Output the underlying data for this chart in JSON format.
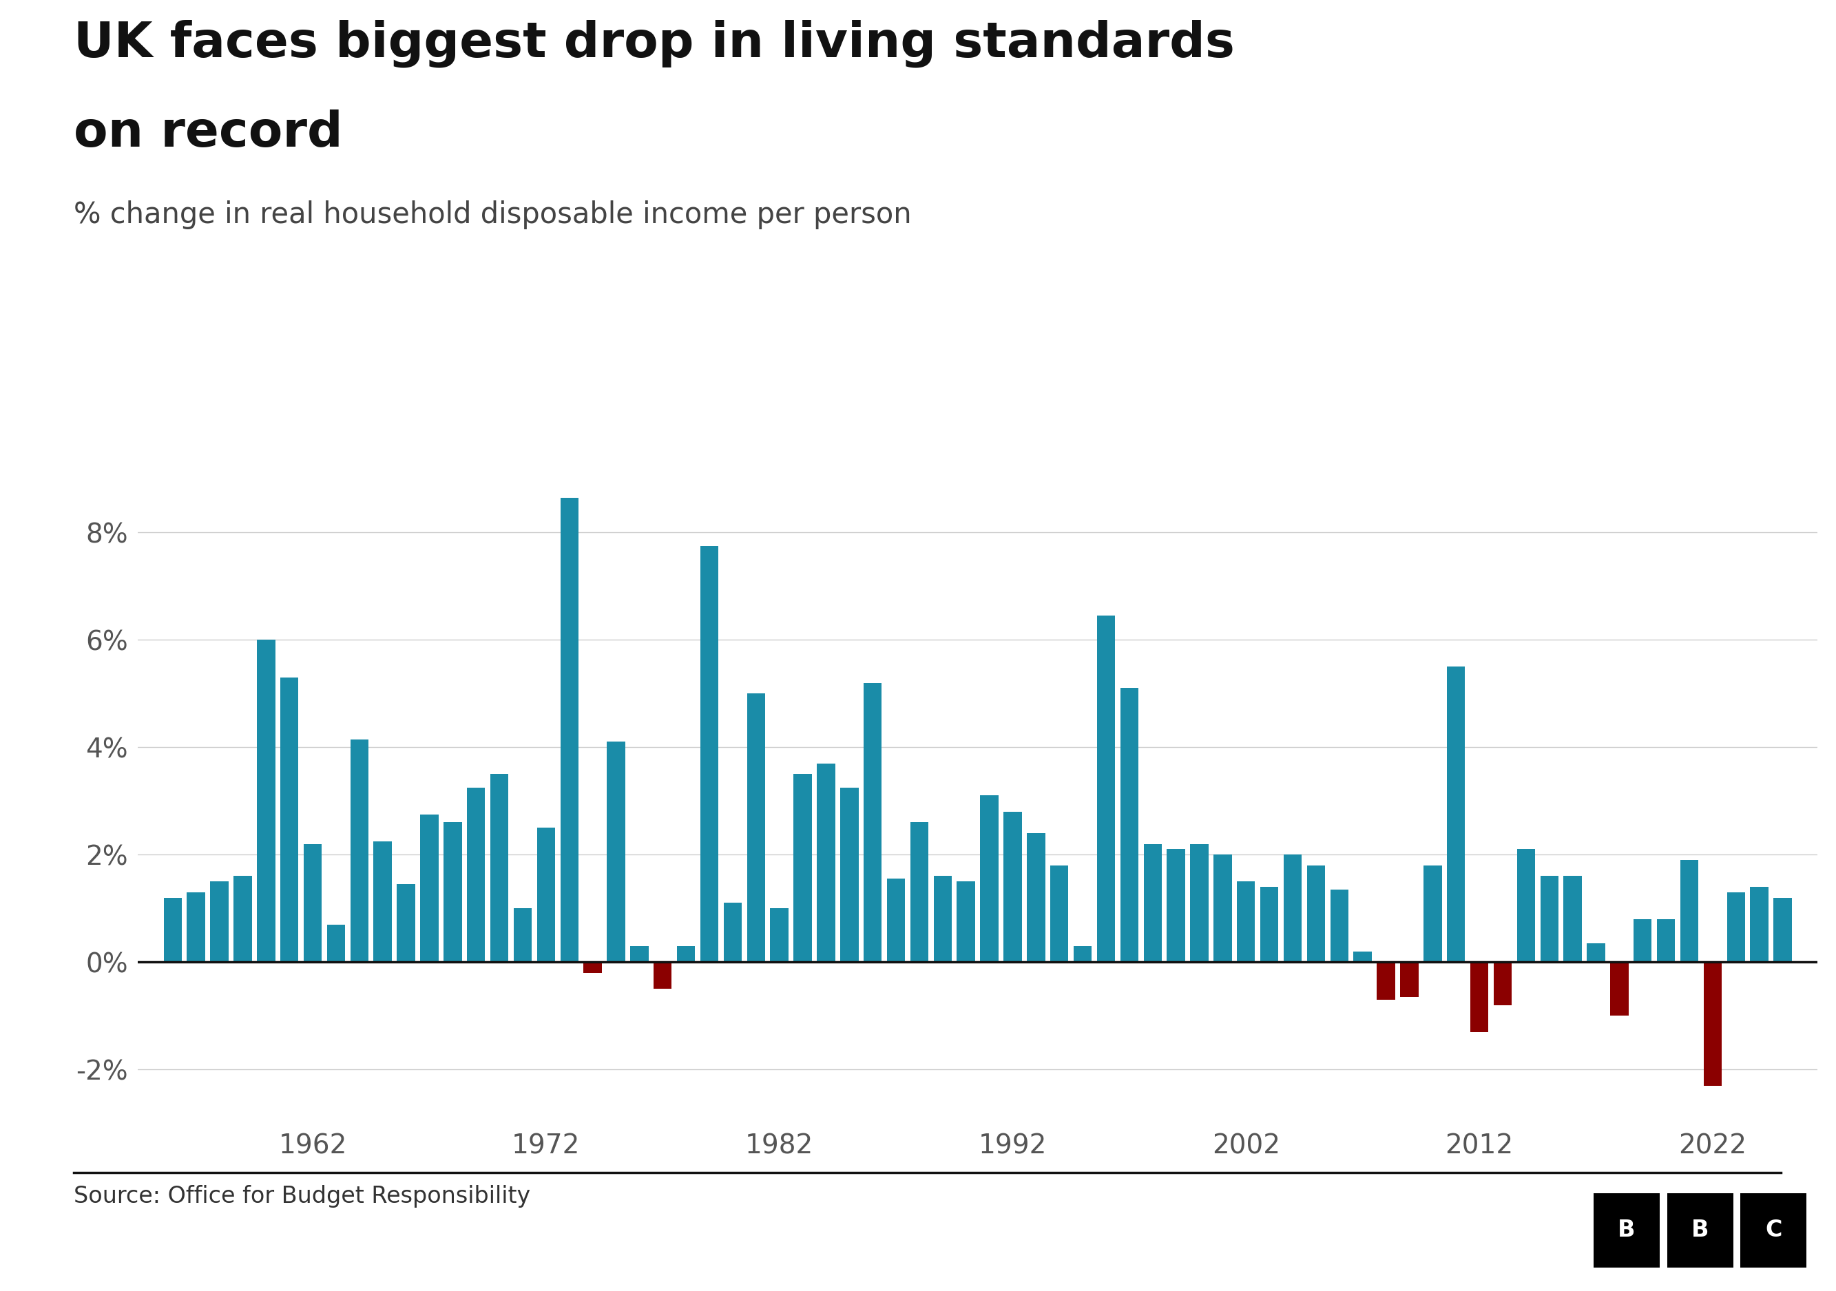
{
  "title_line1": "UK faces biggest drop in living standards",
  "title_line2": "on record",
  "subtitle": "% change in real household disposable income per person",
  "source": "Source: Office for Budget Responsibility",
  "years": [
    1956,
    1957,
    1958,
    1959,
    1960,
    1961,
    1962,
    1963,
    1964,
    1965,
    1966,
    1967,
    1968,
    1969,
    1970,
    1971,
    1972,
    1973,
    1974,
    1975,
    1976,
    1977,
    1978,
    1979,
    1980,
    1981,
    1982,
    1983,
    1984,
    1985,
    1986,
    1987,
    1988,
    1989,
    1990,
    1991,
    1992,
    1993,
    1994,
    1995,
    1996,
    1997,
    1998,
    1999,
    2000,
    2001,
    2002,
    2003,
    2004,
    2005,
    2006,
    2007,
    2008,
    2009,
    2010,
    2011,
    2012,
    2013,
    2014,
    2015,
    2016,
    2017,
    2018,
    2019,
    2020,
    2021,
    2022,
    2023,
    2024,
    2025
  ],
  "values": [
    1.2,
    1.3,
    1.5,
    1.6,
    6.0,
    5.3,
    2.2,
    0.7,
    4.15,
    2.25,
    1.45,
    2.75,
    2.6,
    3.25,
    3.5,
    1.0,
    2.5,
    8.65,
    -0.2,
    4.1,
    0.3,
    -0.5,
    0.3,
    7.75,
    1.1,
    5.0,
    1.0,
    3.5,
    3.7,
    3.25,
    5.2,
    1.55,
    2.6,
    1.6,
    1.5,
    3.1,
    2.8,
    2.4,
    1.8,
    0.3,
    6.45,
    5.1,
    2.2,
    2.1,
    2.2,
    2.0,
    1.5,
    1.4,
    2.0,
    1.8,
    1.35,
    0.2,
    -0.7,
    -0.65,
    1.8,
    5.5,
    -1.3,
    -0.8,
    2.1,
    1.6,
    1.6,
    0.35,
    -1.0,
    0.8,
    0.8,
    1.9,
    -2.3,
    1.3,
    1.4,
    1.2
  ],
  "positive_color": "#1a8ca8",
  "negative_color": "#8b0000",
  "background_color": "#ffffff",
  "ylim": [
    -3.0,
    9.5
  ],
  "yticks": [
    -2,
    0,
    2,
    4,
    6,
    8
  ],
  "ytick_labels": [
    "-2%",
    "0%",
    "2%",
    "4%",
    "6%",
    "8%"
  ],
  "xtick_years": [
    1962,
    1972,
    1982,
    1992,
    2002,
    2012,
    2022
  ],
  "title_fontsize": 52,
  "subtitle_fontsize": 30,
  "source_fontsize": 24,
  "tick_fontsize": 28,
  "bar_width": 0.78
}
